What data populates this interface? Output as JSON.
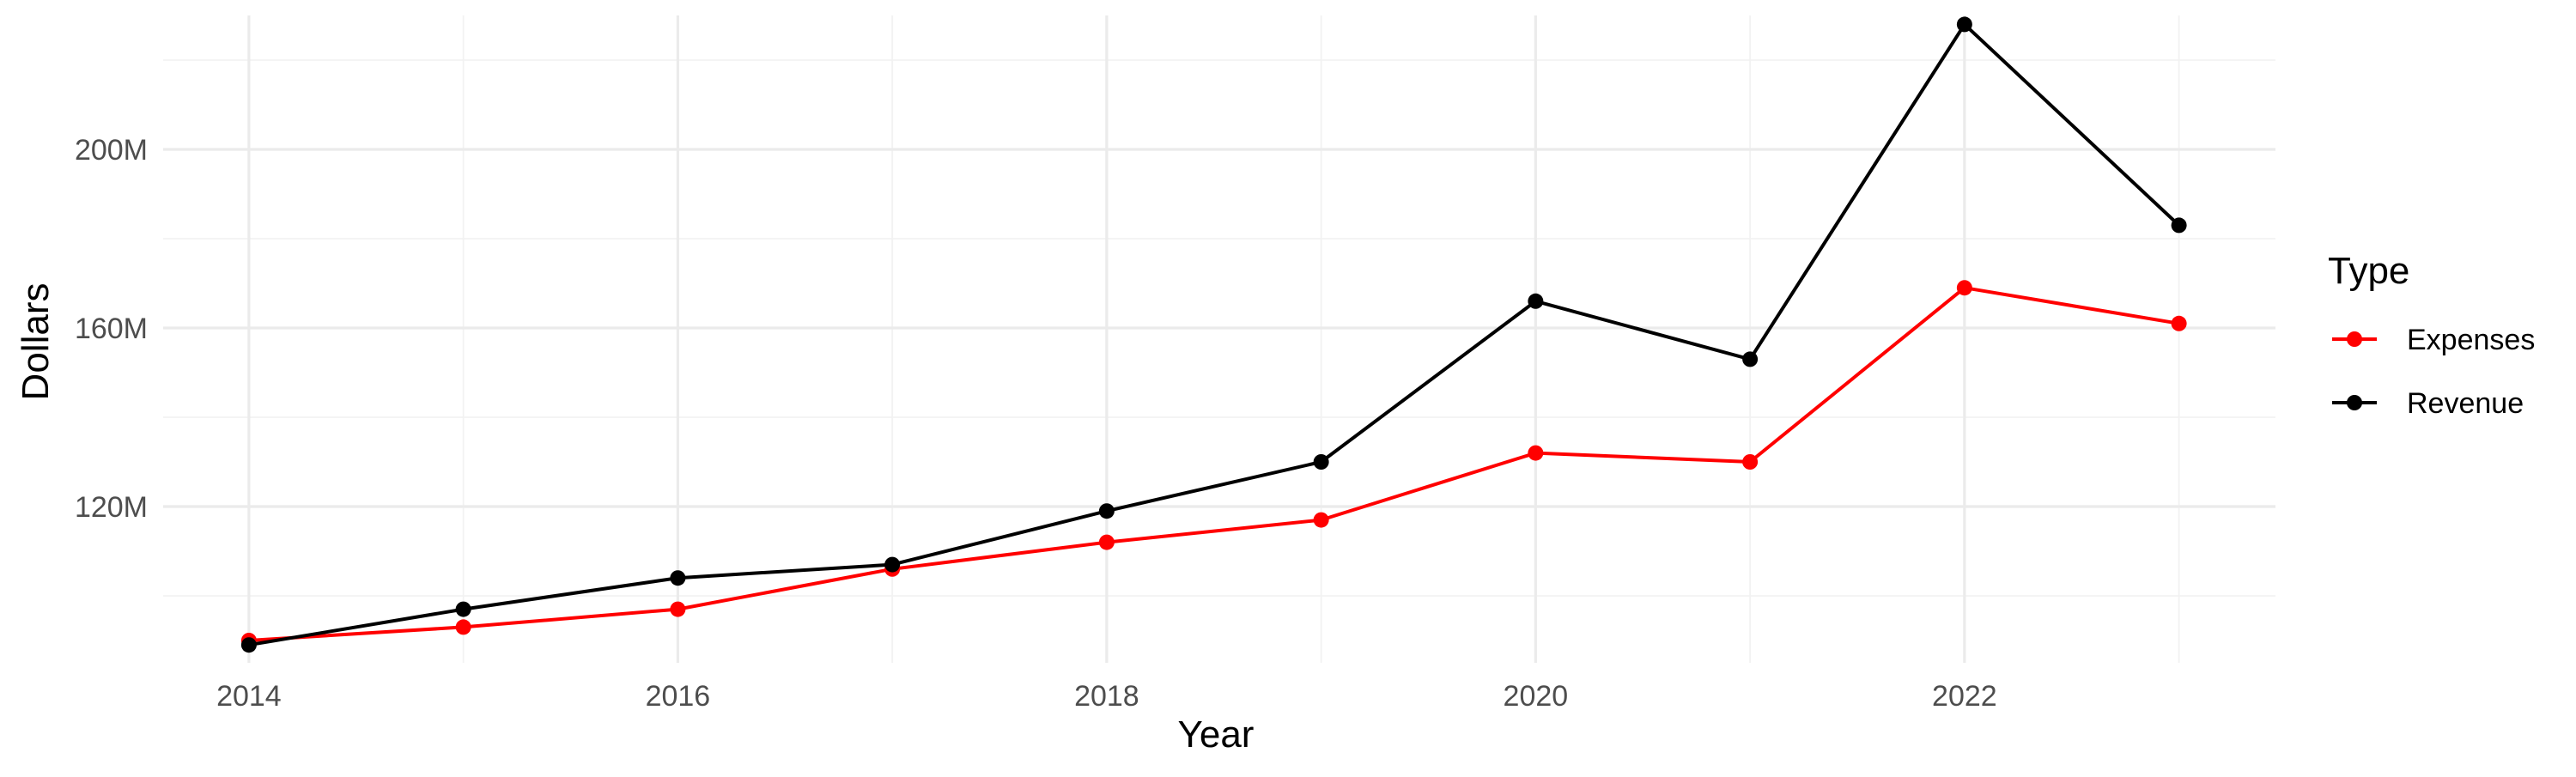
{
  "chart_data": {
    "type": "line",
    "title": "",
    "xlabel": "Year",
    "ylabel": "Dollars",
    "x": [
      2014,
      2015,
      2016,
      2017,
      2018,
      2019,
      2020,
      2021,
      2022,
      2023
    ],
    "x_ticks": [
      2014,
      2016,
      2018,
      2020,
      2022
    ],
    "x_tick_labels": [
      "2014",
      "2016",
      "2018",
      "2020",
      "2022"
    ],
    "y_ticks": [
      120,
      160,
      200
    ],
    "y_tick_labels": [
      "120M",
      "160M",
      "200M"
    ],
    "y_unit": "millions of dollars",
    "xlim": [
      2013.6,
      2023.45
    ],
    "ylim": [
      85,
      230
    ],
    "grid": true,
    "legend": {
      "title": "Type",
      "position": "right"
    },
    "series": [
      {
        "name": "Expenses",
        "color": "#ff0000",
        "values": [
          90,
          93,
          97,
          106,
          112,
          117,
          132,
          130,
          169,
          161
        ]
      },
      {
        "name": "Revenue",
        "color": "#000000",
        "values": [
          89,
          97,
          104,
          107,
          119,
          130,
          166,
          153,
          228,
          183
        ]
      }
    ]
  }
}
